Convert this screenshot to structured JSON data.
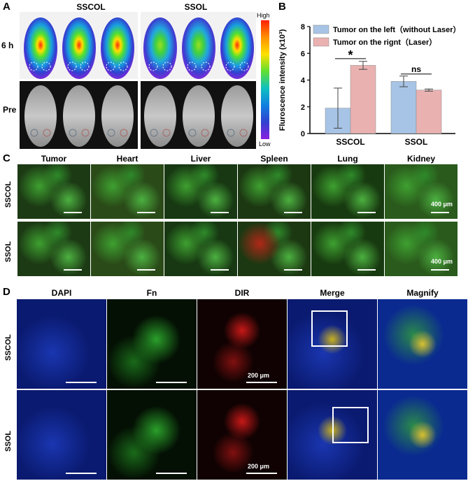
{
  "panelA": {
    "letter": "A",
    "groups": [
      "SSCOL",
      "SSOL"
    ],
    "rows": [
      "6 h",
      "Pre"
    ],
    "colorbar": {
      "high": "High",
      "low": "Low"
    }
  },
  "panelB": {
    "letter": "B"
  },
  "chart_data": {
    "type": "bar",
    "categories": [
      "SSCOL",
      "SSOL"
    ],
    "series": [
      {
        "name": "Tumor on the left（without Laser）",
        "values": [
          1.9,
          3.9
        ],
        "errors": [
          1.5,
          0.4
        ],
        "color": "#a7c4e6"
      },
      {
        "name": "Tumor on the rignt（Laser）",
        "values": [
          5.1,
          3.25
        ],
        "errors": [
          0.3,
          0.08
        ],
        "color": "#eab1b1"
      }
    ],
    "ylabel": "Fluroscence intensity (x10³)",
    "ylim": [
      0,
      8
    ],
    "yticks": [
      "0",
      "2",
      "4",
      "6",
      "8"
    ],
    "annotations": [
      "*",
      "ns"
    ],
    "legend": "top"
  },
  "panelC": {
    "letter": "C",
    "columns": [
      "Tumor",
      "Heart",
      "Liver",
      "Spleen",
      "Lung",
      "Kidney"
    ],
    "rows": [
      "SSCOL",
      "SSOL"
    ],
    "scale": "400 μm"
  },
  "panelD": {
    "letter": "D",
    "columns": [
      "DAPI",
      "Fn",
      "DIR",
      "Merge",
      "Magnify"
    ],
    "rows": [
      "SSCOL",
      "SSOL"
    ],
    "scale": "200 μm"
  },
  "colors": {
    "black": "#000000",
    "white": "#ffffff",
    "dapi": "#0c1f8a",
    "fn": "#1a8a2a",
    "dir": "#c01818",
    "merge_yellow": "#e8d030"
  }
}
